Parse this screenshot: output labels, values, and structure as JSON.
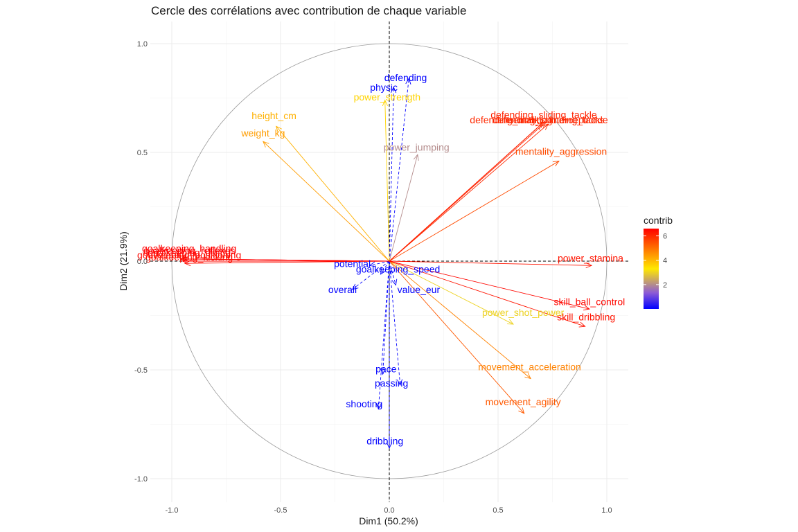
{
  "chart_data": {
    "type": "scatter",
    "subtype": "pca-correlation-circle",
    "title": "Cercle des corrélations avec contribution de chaque variable",
    "xlabel": "Dim1 (50.2%)",
    "ylabel": "Dim2 (21.9%)",
    "xlim": [
      -1.1,
      1.1
    ],
    "ylim": [
      -1.1,
      1.1
    ],
    "x_ticks": [
      "-1.0",
      "-0.5",
      "0.0",
      "0.5",
      "1.0"
    ],
    "y_ticks": [
      "-1.0",
      "-0.5",
      "0.0",
      "0.5",
      "1.0"
    ],
    "grid": true,
    "legend": {
      "title": "contrib",
      "position": "right",
      "ticks": [
        "2",
        "4",
        "6"
      ],
      "tick_values": [
        2,
        4,
        6
      ],
      "range": [
        0,
        6.6
      ],
      "colors": [
        "#0000ff",
        "#ffff00",
        "#ff0000"
      ]
    },
    "variables": [
      {
        "name": "defending",
        "x": 0.09,
        "y": 0.84,
        "contrib": 0.0
      },
      {
        "name": "physic",
        "x": 0.02,
        "y": 0.8,
        "contrib": 0.0
      },
      {
        "name": "power_strength",
        "x": -0.02,
        "y": 0.74,
        "contrib": 3.5
      },
      {
        "name": "height_cm",
        "x": -0.52,
        "y": 0.62,
        "contrib": 4.0
      },
      {
        "name": "weight_kg",
        "x": -0.58,
        "y": 0.55,
        "contrib": 4.3
      },
      {
        "name": "power_jumping",
        "x": 0.13,
        "y": 0.49,
        "contrib": 1.5
      },
      {
        "name": "defending_sliding_tackle",
        "x": 0.71,
        "y": 0.64,
        "contrib": 6.1
      },
      {
        "name": "defending_standing_tackle",
        "x": 0.72,
        "y": 0.64,
        "contrib": 6.1
      },
      {
        "name": "defending_marking",
        "x": 0.7,
        "y": 0.63,
        "contrib": 6.0
      },
      {
        "name": "mentality_interceptions",
        "x": 0.73,
        "y": 0.63,
        "contrib": 6.0
      },
      {
        "name": "mentality_aggression",
        "x": 0.78,
        "y": 0.46,
        "contrib": 5.5
      },
      {
        "name": "goalkeeping_handling",
        "x": -0.96,
        "y": 0.01,
        "contrib": 6.6
      },
      {
        "name": "goalkeeping_reflexes",
        "x": -0.96,
        "y": 0.01,
        "contrib": 6.6
      },
      {
        "name": "goalkeeping_diving",
        "x": -0.95,
        "y": 0.01,
        "contrib": 6.6
      },
      {
        "name": "goalkeeping_positioning",
        "x": -0.95,
        "y": 0.0,
        "contrib": 6.5
      },
      {
        "name": "goalkeeping_kicking",
        "x": -0.94,
        "y": -0.01,
        "contrib": 6.4
      },
      {
        "name": "power_stamina",
        "x": 0.93,
        "y": -0.02,
        "contrib": 6.3
      },
      {
        "name": "potential",
        "x": -0.09,
        "y": -0.02,
        "contrib": 0.0
      },
      {
        "name": "goalkeeping_speed",
        "x": -0.04,
        "y": -0.06,
        "contrib": 0.0
      },
      {
        "name": "overall",
        "x": -0.17,
        "y": -0.13,
        "contrib": 0.0
      },
      {
        "name": "value_eur",
        "x": 0.03,
        "y": -0.11,
        "contrib": 0.0
      },
      {
        "name": "skill_ball_control",
        "x": 0.92,
        "y": -0.22,
        "contrib": 6.5
      },
      {
        "name": "skill_dribbling",
        "x": 0.9,
        "y": -0.3,
        "contrib": 6.3
      },
      {
        "name": "power_shot_power",
        "x": 0.57,
        "y": -0.29,
        "contrib": 2.8
      },
      {
        "name": "movement_acceleration",
        "x": 0.65,
        "y": -0.54,
        "contrib": 4.7
      },
      {
        "name": "movement_agility",
        "x": 0.62,
        "y": -0.7,
        "contrib": 5.3
      },
      {
        "name": "pace",
        "x": -0.03,
        "y": -0.52,
        "contrib": 0.0
      },
      {
        "name": "passing",
        "x": 0.05,
        "y": -0.57,
        "contrib": 0.0
      },
      {
        "name": "shooting",
        "x": -0.05,
        "y": -0.68,
        "contrib": 0.0
      },
      {
        "name": "dribbling",
        "x": 0.0,
        "y": -0.86,
        "contrib": 0.0
      }
    ],
    "labels": [
      {
        "text": "defending",
        "x": 0.075,
        "y": 0.84
      },
      {
        "text": "physic",
        "x": -0.025,
        "y": 0.795
      },
      {
        "text": "power_strength",
        "x": -0.01,
        "y": 0.75
      },
      {
        "text": "height_cm",
        "x": -0.53,
        "y": 0.665
      },
      {
        "text": "weight_kg",
        "x": -0.58,
        "y": 0.585
      },
      {
        "text": "power_jumping",
        "x": 0.125,
        "y": 0.52
      },
      {
        "text": "defending_sliding_tackle",
        "x": 0.71,
        "y": 0.67
      },
      {
        "text": "defending_standing_tackle",
        "x": 0.74,
        "y": 0.645
      },
      {
        "text": "defending_marking",
        "x": 0.56,
        "y": 0.645
      },
      {
        "text": "mentality_interceptions",
        "x": 0.76,
        "y": 0.645
      },
      {
        "text": "mentality_aggression",
        "x": 0.79,
        "y": 0.5
      },
      {
        "text": "goalkeeping_handling",
        "x": -0.92,
        "y": 0.055
      },
      {
        "text": "goalkeeping_reflexes",
        "x": -0.92,
        "y": 0.045
      },
      {
        "text": "goalkeeping_diving",
        "x": -0.92,
        "y": 0.035
      },
      {
        "text": "goalkeeping_positioning",
        "x": -0.92,
        "y": 0.025
      },
      {
        "text": "goalkeeping_kicking",
        "x": -0.92,
        "y": 0.015
      },
      {
        "text": "power_stamina",
        "x": 0.925,
        "y": 0.01
      },
      {
        "text": "potential",
        "x": -0.17,
        "y": -0.015
      },
      {
        "text": "goalkeeping_speed",
        "x": 0.04,
        "y": -0.04
      },
      {
        "text": "overall",
        "x": -0.215,
        "y": -0.135
      },
      {
        "text": "value_eur",
        "x": 0.135,
        "y": -0.135
      },
      {
        "text": "skill_ball_control",
        "x": 0.92,
        "y": -0.19
      },
      {
        "text": "skill_dribbling",
        "x": 0.905,
        "y": -0.26
      },
      {
        "text": "power_shot_power",
        "x": 0.615,
        "y": -0.24
      },
      {
        "text": "movement_acceleration",
        "x": 0.645,
        "y": -0.49
      },
      {
        "text": "movement_agility",
        "x": 0.615,
        "y": -0.65
      },
      {
        "text": "pace",
        "x": -0.015,
        "y": -0.5
      },
      {
        "text": "passing",
        "x": 0.01,
        "y": -0.565
      },
      {
        "text": "shooting",
        "x": -0.115,
        "y": -0.66
      },
      {
        "text": "dribbling",
        "x": -0.02,
        "y": -0.83
      }
    ]
  }
}
